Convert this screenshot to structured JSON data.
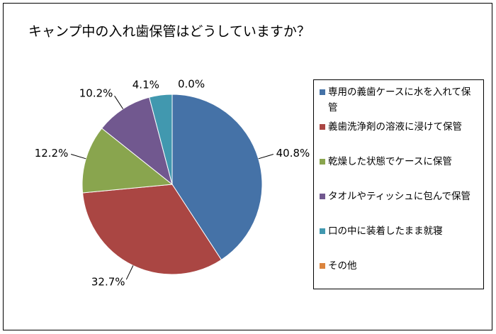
{
  "chart_data": {
    "type": "pie",
    "title": "キャンプ中の入れ歯保管はどうしていますか？",
    "categories": [
      "専用の義歯ケースに水を入れて保管",
      "義歯洗浄剤の溶液に浸けて保管",
      "乾燥した状態でケースに保管",
      "タオルやティッシュに包んで保管",
      "口の中に装着したまま就寝",
      "その他"
    ],
    "values": [
      40.8,
      32.7,
      12.2,
      10.2,
      4.1,
      0.0
    ],
    "value_labels": [
      "40.8%",
      "32.7%",
      "12.2%",
      "10.2%",
      "4.1%",
      "0.0%"
    ],
    "colors": [
      "#4572a7",
      "#aa4643",
      "#89a54e",
      "#71588f",
      "#4198af",
      "#db843d"
    ]
  }
}
